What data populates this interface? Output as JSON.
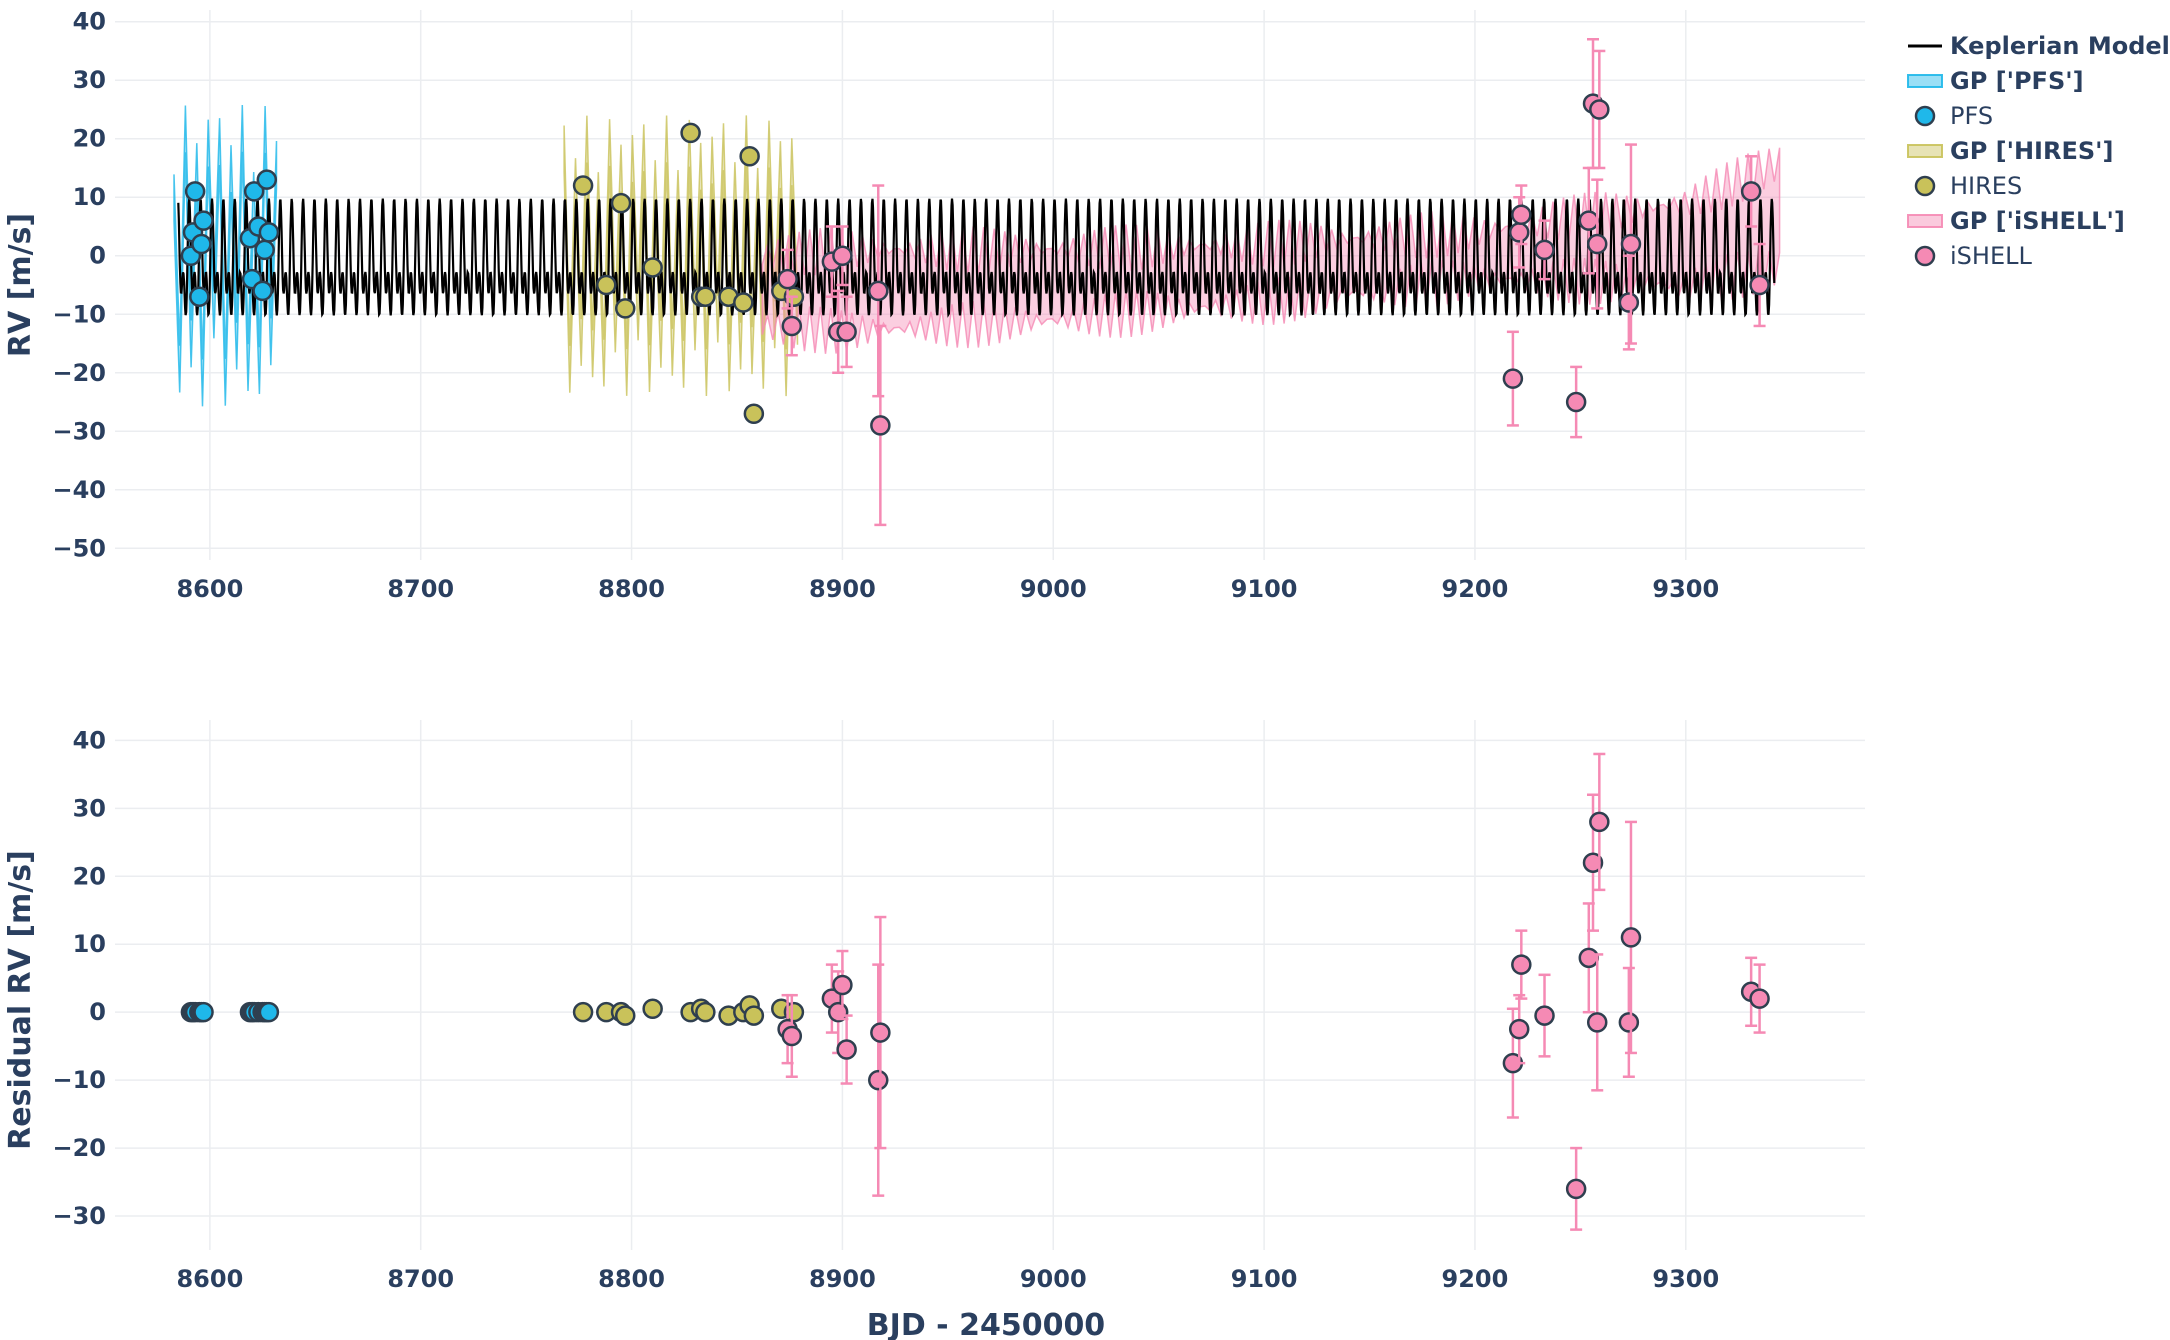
{
  "chart_data": [
    {
      "type": "scatter",
      "panel": "top",
      "title": "",
      "xlabel": "",
      "ylabel": "RV [m/s]",
      "xlim": [
        8555,
        9385
      ],
      "ylim": [
        -52,
        42
      ],
      "xticks": [
        8600,
        8700,
        8800,
        8900,
        9000,
        9100,
        9200,
        9300
      ],
      "yticks": [
        40,
        30,
        20,
        10,
        0,
        -10,
        -20,
        -30,
        -40,
        -50
      ],
      "ytick_labels": [
        "40",
        "30",
        "20",
        "10",
        "0",
        "−10",
        "−20",
        "−30",
        "−40",
        "−50"
      ],
      "model": {
        "name": "Keplerian Model",
        "color": "#000000",
        "x_range": [
          8585,
          9342
        ],
        "period": 5.4,
        "amplitude": 12
      },
      "gp_bands": [
        {
          "name": "GP ['PFS']",
          "color": "#1fb8ea",
          "x_range": [
            8583,
            8633
          ],
          "kind": "spiky",
          "spread": 22
        },
        {
          "name": "GP ['HIRES']",
          "color": "#c9c25a",
          "x_range": [
            8768,
            8880
          ],
          "kind": "spiky",
          "spread": 20
        },
        {
          "name": "GP ['iSHELL']",
          "color": "#f58ab4",
          "x_range": [
            8862,
            9345
          ],
          "kind": "trend",
          "center": [
            [
              8862,
              -6
            ],
            [
              8900,
              -6
            ],
            [
              9000,
              -5
            ],
            [
              9100,
              -3
            ],
            [
              9200,
              0
            ],
            [
              9240,
              1
            ],
            [
              9300,
              2
            ],
            [
              9345,
              7
            ]
          ],
          "halfwidth": [
            [
              8862,
              6
            ],
            [
              8900,
              7
            ],
            [
              9000,
              6
            ],
            [
              9100,
              5
            ],
            [
              9200,
              4
            ],
            [
              9300,
              7
            ],
            [
              9345,
              9
            ]
          ]
        }
      ],
      "series": [
        {
          "name": "PFS",
          "color": "#1fb8ea",
          "points": [
            [
              8591,
              0
            ],
            [
              8592,
              4
            ],
            [
              8593,
              11
            ],
            [
              8595,
              -7
            ],
            [
              8596,
              2
            ],
            [
              8597,
              6
            ],
            [
              8619,
              3
            ],
            [
              8620,
              -4
            ],
            [
              8621,
              11
            ],
            [
              8623,
              5
            ],
            [
              8625,
              -6
            ],
            [
              8626,
              1
            ],
            [
              8627,
              13
            ],
            [
              8628,
              4
            ]
          ]
        },
        {
          "name": "HIRES",
          "color": "#c9c25a",
          "points": [
            [
              8777,
              12
            ],
            [
              8788,
              -5
            ],
            [
              8795,
              9
            ],
            [
              8797,
              -9
            ],
            [
              8810,
              -2
            ],
            [
              8828,
              21
            ],
            [
              8833,
              -7
            ],
            [
              8835,
              -7
            ],
            [
              8846,
              -7
            ],
            [
              8853,
              -8
            ],
            [
              8856,
              17
            ],
            [
              8858,
              -27
            ],
            [
              8871,
              -6
            ],
            [
              8877,
              -7
            ]
          ]
        },
        {
          "name": "iSHELL",
          "color": "#f58ab4",
          "points": [
            [
              8874,
              -4,
              5
            ],
            [
              8876,
              -12,
              5
            ],
            [
              8895,
              -1,
              6
            ],
            [
              8898,
              -13,
              7
            ],
            [
              8900,
              0,
              5
            ],
            [
              8902,
              -13,
              6
            ],
            [
              8917,
              -6,
              18
            ],
            [
              8918,
              -29,
              17
            ],
            [
              9218,
              -21,
              8
            ],
            [
              9221,
              4,
              6
            ],
            [
              9222,
              7,
              5
            ],
            [
              9233,
              1,
              5
            ],
            [
              9248,
              -25,
              6
            ],
            [
              9254,
              6,
              9
            ],
            [
              9256,
              26,
              11
            ],
            [
              9258,
              2,
              11
            ],
            [
              9259,
              25,
              10
            ],
            [
              9273,
              -8,
              8
            ],
            [
              9274,
              2,
              17
            ],
            [
              9331,
              11,
              6
            ],
            [
              9335,
              -5,
              7
            ]
          ]
        }
      ],
      "legend": {
        "placement": "top-right",
        "entries": [
          {
            "label": "Keplerian Model",
            "kind": "line",
            "color": "#000000",
            "bold": true
          },
          {
            "label": "GP ['PFS']",
            "kind": "band",
            "color": "#1fb8ea",
            "bold": true
          },
          {
            "label": "PFS",
            "kind": "marker",
            "color": "#1fb8ea",
            "bold": false
          },
          {
            "label": "GP ['HIRES']",
            "kind": "band",
            "color": "#c9c25a",
            "bold": true
          },
          {
            "label": "HIRES",
            "kind": "marker",
            "color": "#c9c25a",
            "bold": false
          },
          {
            "label": "GP ['iSHELL']",
            "kind": "band",
            "color": "#f58ab4",
            "bold": true
          },
          {
            "label": "iSHELL",
            "kind": "marker",
            "color": "#f58ab4",
            "bold": false
          }
        ]
      }
    },
    {
      "type": "scatter",
      "panel": "bottom",
      "title": "",
      "xlabel": "BJD - 2450000",
      "ylabel": "Residual RV [m/s]",
      "xlim": [
        8555,
        9385
      ],
      "ylim": [
        -35,
        43
      ],
      "xticks": [
        8600,
        8700,
        8800,
        8900,
        9000,
        9100,
        9200,
        9300
      ],
      "yticks": [
        40,
        30,
        20,
        10,
        0,
        -10,
        -20,
        -30
      ],
      "ytick_labels": [
        "40",
        "30",
        "20",
        "10",
        "0",
        "−10",
        "−20",
        "−30"
      ],
      "series": [
        {
          "name": "PFS",
          "color": "#1fb8ea",
          "points": [
            [
              8591,
              0
            ],
            [
              8592,
              0
            ],
            [
              8593,
              0
            ],
            [
              8595,
              0
            ],
            [
              8596,
              0
            ],
            [
              8597,
              0
            ],
            [
              8619,
              0
            ],
            [
              8620,
              0
            ],
            [
              8621,
              0
            ],
            [
              8623,
              0
            ],
            [
              8625,
              0
            ],
            [
              8626,
              0
            ],
            [
              8627,
              0
            ],
            [
              8628,
              0
            ]
          ]
        },
        {
          "name": "HIRES",
          "color": "#c9c25a",
          "points": [
            [
              8777,
              0
            ],
            [
              8788,
              0
            ],
            [
              8795,
              0
            ],
            [
              8797,
              -0.5
            ],
            [
              8810,
              0.5
            ],
            [
              8828,
              0
            ],
            [
              8833,
              0.5
            ],
            [
              8835,
              0
            ],
            [
              8846,
              -0.5
            ],
            [
              8853,
              0
            ],
            [
              8856,
              1
            ],
            [
              8858,
              -0.5
            ],
            [
              8871,
              0.5
            ],
            [
              8877,
              0
            ]
          ]
        },
        {
          "name": "iSHELL",
          "color": "#f58ab4",
          "points": [
            [
              8874,
              -2.5,
              5
            ],
            [
              8876,
              -3.5,
              6
            ],
            [
              8895,
              2,
              5
            ],
            [
              8898,
              0,
              6
            ],
            [
              8900,
              4,
              5
            ],
            [
              8902,
              -5.5,
              5
            ],
            [
              8917,
              -10,
              17
            ],
            [
              8918,
              -3,
              17
            ],
            [
              9218,
              -7.5,
              8
            ],
            [
              9221,
              -2.5,
              5
            ],
            [
              9222,
              7,
              5
            ],
            [
              9233,
              -0.5,
              6
            ],
            [
              9248,
              -26,
              6
            ],
            [
              9254,
              8,
              8
            ],
            [
              9256,
              22,
              10
            ],
            [
              9258,
              -1.5,
              10
            ],
            [
              9259,
              28,
              10
            ],
            [
              9273,
              -1.5,
              8
            ],
            [
              9274,
              11,
              17
            ],
            [
              9331,
              3,
              5
            ],
            [
              9335,
              2,
              5
            ]
          ]
        }
      ]
    }
  ]
}
